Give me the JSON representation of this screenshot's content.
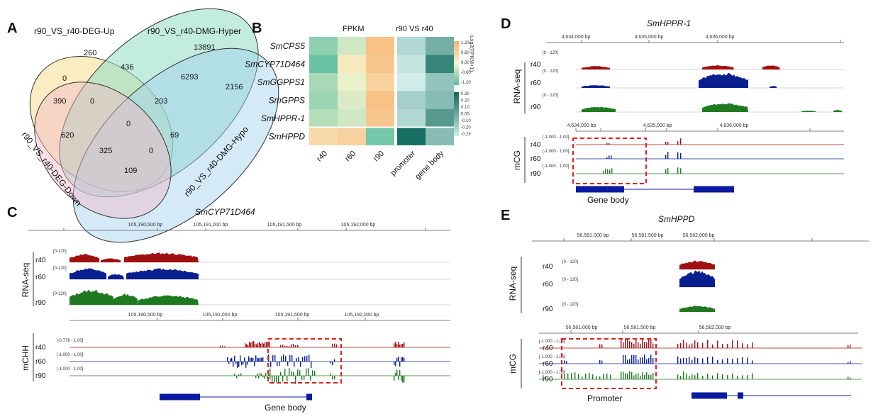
{
  "panels": {
    "a": "A",
    "b": "B",
    "c": "C",
    "d": "D",
    "e": "E"
  },
  "venn": {
    "sets": [
      "r90_VS_r40-DEG-Up",
      "r90_VS_r40-DMG-Hyper",
      "r90_VS_r40-DMG-Hypo",
      "r90_VS_r40-DEG-Down"
    ],
    "colors": [
      "#f6e19a",
      "#8fdcc4",
      "#9fd0ee",
      "#f4b8c8"
    ],
    "counts": {
      "up_only": "260",
      "hyper_only": "13891",
      "hypo_only": "2156",
      "down_only": "390",
      "up_hyper": "436",
      "hyper_hypo": "6293",
      "down_hypo": "109",
      "up_down": "0",
      "up_hyper_hypo": "203",
      "up_hyper_down": "0",
      "center": "0",
      "down_hyper": "620",
      "down_hyper_hypo": "325",
      "up_down_hypo": "0",
      "hyper_hypo_down": "69"
    }
  },
  "heatmap": {
    "header_fpkm": "FPKM",
    "header_meth": "r90 VS  r40",
    "genes": [
      "SmCPS5",
      "SmCYP71D464",
      "SmGGPPS1",
      "SmGPPS",
      "SmHPPR-1",
      "SmHPPD"
    ],
    "columns": [
      "r40",
      "r60",
      "r90",
      "promoter",
      "gene body"
    ],
    "fpkm_values": [
      [
        -0.8,
        -0.3,
        0.9
      ],
      [
        -1.1,
        0.2,
        0.8
      ],
      [
        -0.6,
        -0.1,
        0.6
      ],
      [
        -0.7,
        -0.2,
        0.9
      ],
      [
        -0.5,
        -0.3,
        0.8
      ],
      [
        0.5,
        0.6,
        -1.0
      ]
    ],
    "meth_values": [
      [
        -0.05,
        -0.15
      ],
      [
        -0.02,
        -0.25
      ],
      [
        0.0,
        -0.1
      ],
      [
        -0.07,
        -0.12
      ],
      [
        -0.05,
        -0.2
      ],
      [
        -0.3,
        -0.12
      ]
    ],
    "legend1": {
      "title": "Log2(FPKM+1)",
      "ticks": [
        "1.20",
        "0.60",
        "0.00",
        "-0.60",
        "-1.20"
      ]
    },
    "legend2": {
      "ticks": [
        "0.30",
        "0.20",
        "0.10",
        "0.00",
        "-0.10",
        "-0.20",
        "-0.25"
      ]
    }
  },
  "panel_c": {
    "title": "SmCYP71D464",
    "top_ticks": [
      "105,190,500 bp",
      "105,191,000 bp",
      "105,191,500 bp",
      "105,192,000 bp"
    ],
    "mid_ticks": [
      "105,190,500 bp",
      "105,191,000 bp",
      "105,191,500 bp",
      "105,192,000 bp"
    ],
    "rna_group": "RNA-seq",
    "meth_group": "mCHH",
    "rna_tracks": [
      {
        "name": "r40",
        "range": "[0-120]"
      },
      {
        "name": "r60",
        "range": "[0-120]"
      },
      {
        "name": "r90",
        "range": "[0-120]"
      }
    ],
    "meth_tracks": [
      {
        "name": "r40",
        "range": "[-0.778 - 1.00]"
      },
      {
        "name": "r60",
        "range": "[-1.000 - 1.00]"
      },
      {
        "name": "r90",
        "range": "[-1.000 - 1.00]"
      }
    ],
    "gene_label": "Gene body"
  },
  "panel_d": {
    "title": "SmHPPR-1",
    "top_ticks": [
      "4,634,000 bp",
      "4,635,000 bp",
      "4,636,000 bp"
    ],
    "mid_ticks": [
      "4,634,000 bp",
      "4,635,000 bp",
      "4,636,000 bp"
    ],
    "rna_group": "RNA-seq",
    "meth_group": "mCG",
    "rna_tracks": [
      {
        "name": "r40",
        "range": "[0 - 120]"
      },
      {
        "name": "r60",
        "range": "[0 - 120]"
      },
      {
        "name": "r90",
        "range": "[0 - 120]"
      }
    ],
    "meth_tracks": [
      {
        "name": "r40",
        "range": "[-1.000 - 1.00]"
      },
      {
        "name": "r60",
        "range": "[-1.000 - 1.00]"
      },
      {
        "name": "r90",
        "range": "[-1.000 - 1.00]"
      }
    ],
    "gene_label": "Gene body"
  },
  "panel_e": {
    "title": "SmHPPD",
    "top_ticks": [
      "56,581,000 bp",
      "56,581,500 bp",
      "56,582,000 bp"
    ],
    "mid_ticks": [
      "56,581,000 bp",
      "56,581,500 bp",
      "56,582,000 bp"
    ],
    "rna_group": "RNA-seq",
    "meth_group": "mCG",
    "rna_tracks": [
      {
        "name": "r40",
        "range": "[0 - 120]"
      },
      {
        "name": "r60",
        "range": "[0 - 120]"
      },
      {
        "name": "r90",
        "range": "[0 - 120]"
      }
    ],
    "meth_tracks": [
      {
        "name": "r40",
        "range": "[-1.000 - 1.00]"
      },
      {
        "name": "r60",
        "range": "[-1.000 - 1.00]"
      },
      {
        "name": "r90",
        "range": "[-1.000 - 1.00]"
      }
    ],
    "gene_label": "Promoter"
  },
  "track_colors": {
    "r40": "#a01010",
    "r60": "#0a1f8f",
    "r90": "#1f7a1f",
    "gene": "#0a1aa0",
    "box": "#e02020"
  }
}
